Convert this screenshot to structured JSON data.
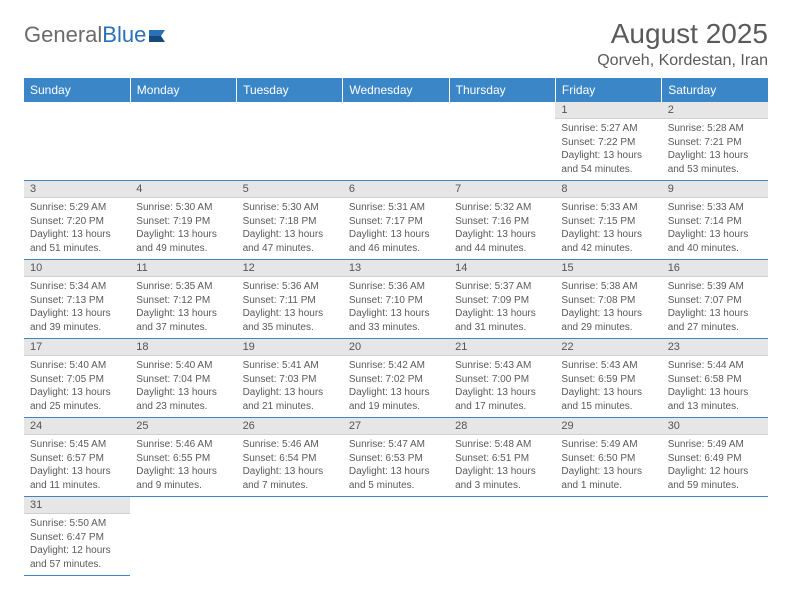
{
  "brand": {
    "first": "General",
    "second": "Blue"
  },
  "title": "August 2025",
  "location": "Qorveh, Kordestan, Iran",
  "colors": {
    "header_bg": "#3b86c6",
    "header_text": "#ffffff",
    "daynum_bg": "#e6e6e6",
    "border": "#3b86c6",
    "text": "#5a5a5a",
    "brand_accent": "#2a71b8"
  },
  "dayNames": [
    "Sunday",
    "Monday",
    "Tuesday",
    "Wednesday",
    "Thursday",
    "Friday",
    "Saturday"
  ],
  "weeks": [
    [
      null,
      null,
      null,
      null,
      null,
      {
        "n": "1",
        "sr": "5:27 AM",
        "ss": "7:22 PM",
        "dl": "13 hours and 54 minutes."
      },
      {
        "n": "2",
        "sr": "5:28 AM",
        "ss": "7:21 PM",
        "dl": "13 hours and 53 minutes."
      }
    ],
    [
      {
        "n": "3",
        "sr": "5:29 AM",
        "ss": "7:20 PM",
        "dl": "13 hours and 51 minutes."
      },
      {
        "n": "4",
        "sr": "5:30 AM",
        "ss": "7:19 PM",
        "dl": "13 hours and 49 minutes."
      },
      {
        "n": "5",
        "sr": "5:30 AM",
        "ss": "7:18 PM",
        "dl": "13 hours and 47 minutes."
      },
      {
        "n": "6",
        "sr": "5:31 AM",
        "ss": "7:17 PM",
        "dl": "13 hours and 46 minutes."
      },
      {
        "n": "7",
        "sr": "5:32 AM",
        "ss": "7:16 PM",
        "dl": "13 hours and 44 minutes."
      },
      {
        "n": "8",
        "sr": "5:33 AM",
        "ss": "7:15 PM",
        "dl": "13 hours and 42 minutes."
      },
      {
        "n": "9",
        "sr": "5:33 AM",
        "ss": "7:14 PM",
        "dl": "13 hours and 40 minutes."
      }
    ],
    [
      {
        "n": "10",
        "sr": "5:34 AM",
        "ss": "7:13 PM",
        "dl": "13 hours and 39 minutes."
      },
      {
        "n": "11",
        "sr": "5:35 AM",
        "ss": "7:12 PM",
        "dl": "13 hours and 37 minutes."
      },
      {
        "n": "12",
        "sr": "5:36 AM",
        "ss": "7:11 PM",
        "dl": "13 hours and 35 minutes."
      },
      {
        "n": "13",
        "sr": "5:36 AM",
        "ss": "7:10 PM",
        "dl": "13 hours and 33 minutes."
      },
      {
        "n": "14",
        "sr": "5:37 AM",
        "ss": "7:09 PM",
        "dl": "13 hours and 31 minutes."
      },
      {
        "n": "15",
        "sr": "5:38 AM",
        "ss": "7:08 PM",
        "dl": "13 hours and 29 minutes."
      },
      {
        "n": "16",
        "sr": "5:39 AM",
        "ss": "7:07 PM",
        "dl": "13 hours and 27 minutes."
      }
    ],
    [
      {
        "n": "17",
        "sr": "5:40 AM",
        "ss": "7:05 PM",
        "dl": "13 hours and 25 minutes."
      },
      {
        "n": "18",
        "sr": "5:40 AM",
        "ss": "7:04 PM",
        "dl": "13 hours and 23 minutes."
      },
      {
        "n": "19",
        "sr": "5:41 AM",
        "ss": "7:03 PM",
        "dl": "13 hours and 21 minutes."
      },
      {
        "n": "20",
        "sr": "5:42 AM",
        "ss": "7:02 PM",
        "dl": "13 hours and 19 minutes."
      },
      {
        "n": "21",
        "sr": "5:43 AM",
        "ss": "7:00 PM",
        "dl": "13 hours and 17 minutes."
      },
      {
        "n": "22",
        "sr": "5:43 AM",
        "ss": "6:59 PM",
        "dl": "13 hours and 15 minutes."
      },
      {
        "n": "23",
        "sr": "5:44 AM",
        "ss": "6:58 PM",
        "dl": "13 hours and 13 minutes."
      }
    ],
    [
      {
        "n": "24",
        "sr": "5:45 AM",
        "ss": "6:57 PM",
        "dl": "13 hours and 11 minutes."
      },
      {
        "n": "25",
        "sr": "5:46 AM",
        "ss": "6:55 PM",
        "dl": "13 hours and 9 minutes."
      },
      {
        "n": "26",
        "sr": "5:46 AM",
        "ss": "6:54 PM",
        "dl": "13 hours and 7 minutes."
      },
      {
        "n": "27",
        "sr": "5:47 AM",
        "ss": "6:53 PM",
        "dl": "13 hours and 5 minutes."
      },
      {
        "n": "28",
        "sr": "5:48 AM",
        "ss": "6:51 PM",
        "dl": "13 hours and 3 minutes."
      },
      {
        "n": "29",
        "sr": "5:49 AM",
        "ss": "6:50 PM",
        "dl": "13 hours and 1 minute."
      },
      {
        "n": "30",
        "sr": "5:49 AM",
        "ss": "6:49 PM",
        "dl": "12 hours and 59 minutes."
      }
    ],
    [
      {
        "n": "31",
        "sr": "5:50 AM",
        "ss": "6:47 PM",
        "dl": "12 hours and 57 minutes."
      },
      null,
      null,
      null,
      null,
      null,
      null
    ]
  ],
  "labels": {
    "sunrise": "Sunrise:",
    "sunset": "Sunset:",
    "daylight": "Daylight:"
  }
}
